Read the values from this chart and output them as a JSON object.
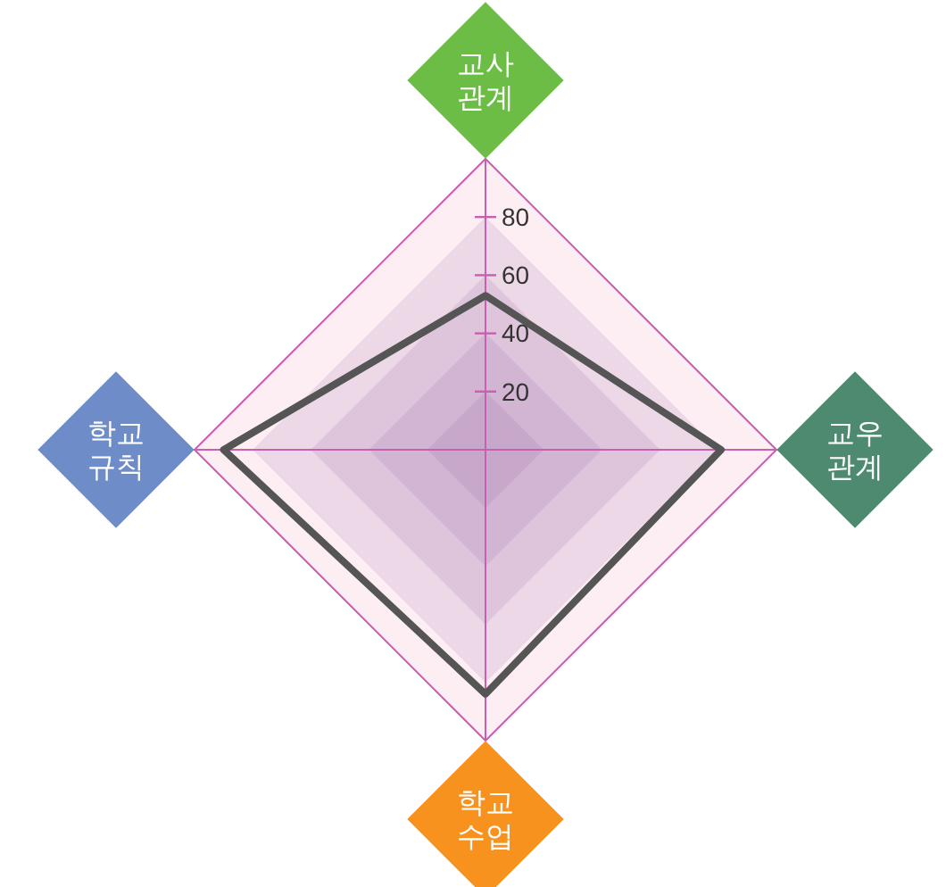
{
  "chart_data": {
    "type": "radar",
    "categories": [
      "교사 관계",
      "교우 관계",
      "학교 수업",
      "학교 규칙"
    ],
    "colors": [
      "#6cbd45",
      "#4e8a6f",
      "#f7921e",
      "#6e8cc8"
    ],
    "series": [
      {
        "color": "#555555",
        "values": [
          53,
          81,
          84,
          90
        ]
      }
    ],
    "ylim": [
      0,
      100
    ],
    "yticks": [
      20,
      40,
      60,
      80
    ],
    "grid": true,
    "marker": "none",
    "line_style": "solid"
  }
}
